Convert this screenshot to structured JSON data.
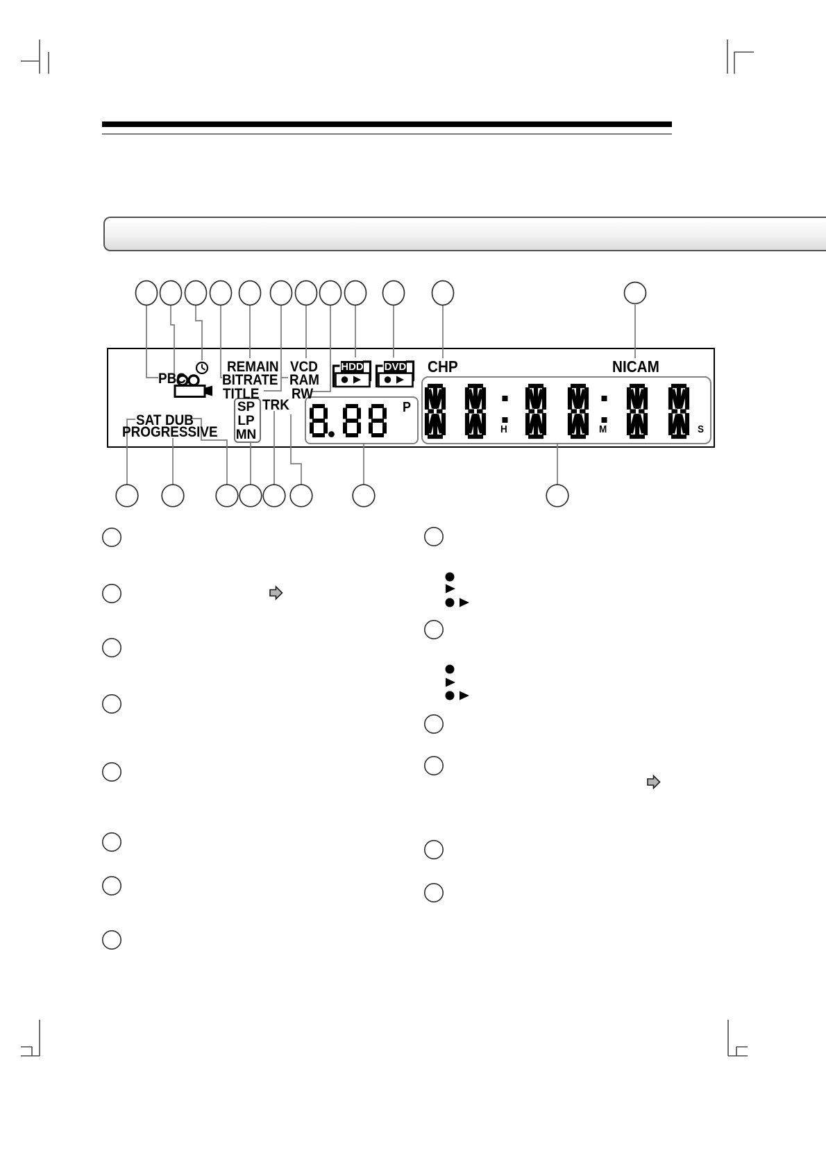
{
  "panel": {
    "labels": {
      "pbc": "PBC",
      "remain": "REMAIN",
      "bitrate": "BITRATE",
      "title": "TITLE",
      "vcd": "VCD",
      "ram": "RAM",
      "rw": "RW",
      "trk": "TRK",
      "sat": "SAT",
      "dub": "DUB",
      "progressive": "PROGRESSIVE",
      "chp": "CHP",
      "nicam": "NICAM"
    },
    "rec_mode_box": {
      "sp": "SP",
      "lp": "LP",
      "mn": "MN"
    },
    "hdd_indicator": {
      "label": "HDD"
    },
    "dvd_indicator": {
      "label": "DVD"
    },
    "program_display": {
      "value": "8.88",
      "unit": "P"
    },
    "time_display": {
      "value": "88:88:88",
      "hour_label": "H",
      "minute_label": "M",
      "second_label": "S"
    }
  },
  "callouts": {
    "top_circle_count": 12,
    "bottom_circle_count": 8,
    "left_list_circle_count": 8,
    "right_list_circle_count": 6
  },
  "icons": {
    "timer": "clock-icon",
    "camera": "video-camera-icon",
    "record": "record-dot-icon",
    "play": "play-triangle-icon",
    "jump": "block-arrow-right-icon"
  },
  "colors": {
    "ink": "#000000",
    "callout_line": "#7a7a7a",
    "arrow_fill": "#b4b4b4",
    "header_gradient_top": "#ffffff",
    "header_gradient_bottom": "#dcdcdc"
  }
}
